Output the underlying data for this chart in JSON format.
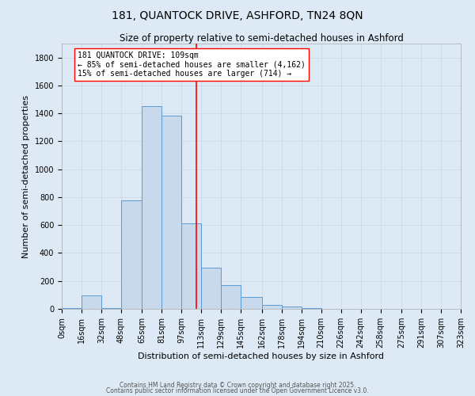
{
  "title": "181, QUANTOCK DRIVE, ASHFORD, TN24 8QN",
  "subtitle": "Size of property relative to semi-detached houses in Ashford",
  "xlabel": "Distribution of semi-detached houses by size in Ashford",
  "ylabel": "Number of semi-detached properties",
  "bin_edges": [
    0,
    16,
    32,
    48,
    65,
    81,
    97,
    113,
    129,
    145,
    162,
    178,
    194,
    210,
    226,
    242,
    258,
    275,
    291,
    307,
    323
  ],
  "bin_labels": [
    "0sqm",
    "16sqm",
    "32sqm",
    "48sqm",
    "65sqm",
    "81sqm",
    "97sqm",
    "113sqm",
    "129sqm",
    "145sqm",
    "162sqm",
    "178sqm",
    "194sqm",
    "210sqm",
    "226sqm",
    "242sqm",
    "258sqm",
    "275sqm",
    "291sqm",
    "307sqm",
    "323sqm"
  ],
  "counts": [
    5,
    95,
    5,
    775,
    1450,
    1385,
    615,
    295,
    170,
    85,
    30,
    15,
    5,
    0,
    0,
    0,
    0,
    0,
    0,
    0
  ],
  "bar_facecolor": "#c9d9ec",
  "bar_edgecolor": "#5b9bd5",
  "vline_x": 109,
  "vline_color": "red",
  "annotation_line1": "181 QUANTOCK DRIVE: 109sqm",
  "annotation_line2": "← 85% of semi-detached houses are smaller (4,162)",
  "annotation_line3": "15% of semi-detached houses are larger (714) →",
  "annotation_box_edgecolor": "red",
  "annotation_box_facecolor": "white",
  "ylim": [
    0,
    1900
  ],
  "yticks": [
    0,
    200,
    400,
    600,
    800,
    1000,
    1200,
    1400,
    1600,
    1800
  ],
  "grid_color": "#c8d8e8",
  "bg_color": "#ddeaf6",
  "footer1": "Contains HM Land Registry data © Crown copyright and database right 2025.",
  "footer2": "Contains public sector information licensed under the Open Government Licence v3.0.",
  "title_fontsize": 10,
  "subtitle_fontsize": 8.5,
  "axis_label_fontsize": 8,
  "tick_fontsize": 7
}
